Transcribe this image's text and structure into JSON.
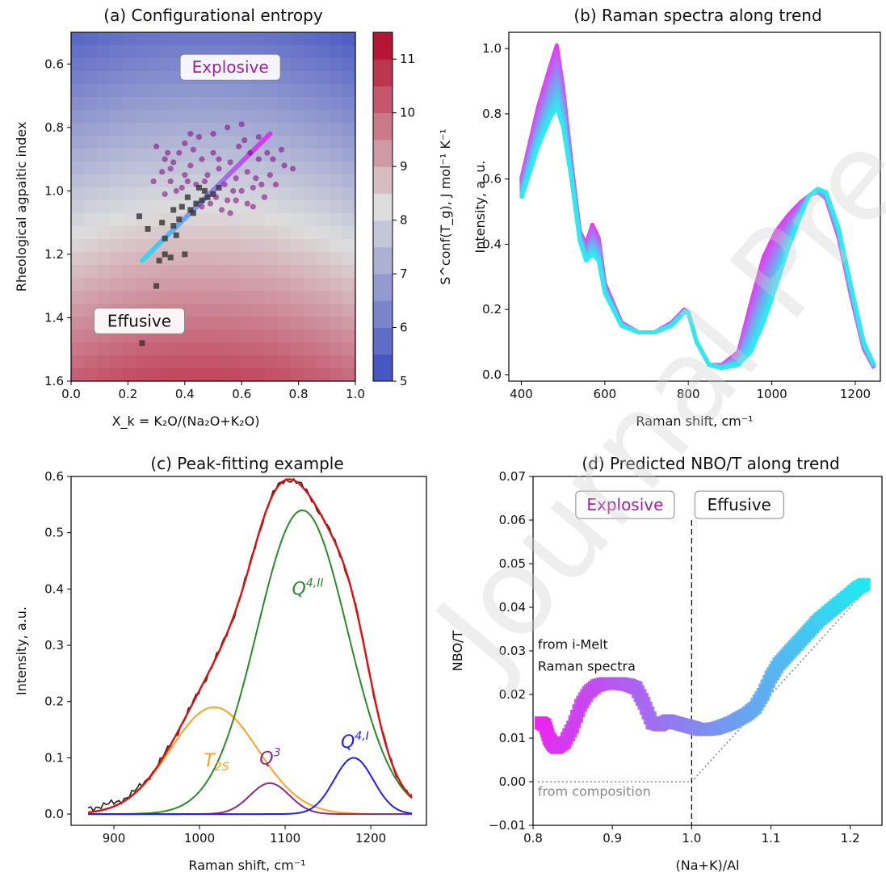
{
  "watermark": "Journal Pre-proofs",
  "chart_data": [
    {
      "id": "a",
      "type": "heatmap",
      "title": "(a) Configurational entropy",
      "xlabel": "X_k = K₂O/(Na₂O+K₂O)",
      "ylabel": "Rheological agpaitic index",
      "xlim": [
        0.0,
        1.0
      ],
      "ylim": [
        1.6,
        0.5
      ],
      "y_inverted": true,
      "xticks": [
        "0.0",
        "0.2",
        "0.4",
        "0.6",
        "0.8",
        "1.0"
      ],
      "yticks": [
        "0.6",
        "0.8",
        "1.0",
        "1.2",
        "1.4",
        "1.6"
      ],
      "colorbar": {
        "label": "S^conf(T_g), J mol⁻¹ K⁻¹",
        "range": [
          5,
          11.5
        ],
        "ticks": [
          "5",
          "6",
          "7",
          "8",
          "9",
          "10",
          "11"
        ],
        "colormap": "coolwarm",
        "low_color": "#3b4cc0",
        "mid_color": "#dddddd",
        "high_color": "#b40426"
      },
      "annotations": [
        {
          "text": "Explosive",
          "x": 0.56,
          "y": 0.61,
          "color": "#a020a0"
        },
        {
          "text": "Effusive",
          "x": 0.24,
          "y": 1.41,
          "color": "#111111"
        }
      ],
      "trend_line": {
        "start": [
          0.25,
          1.22
        ],
        "end": [
          0.7,
          0.82
        ],
        "color_start": "#33ddee",
        "color_end": "#dd33ee"
      },
      "series": [
        {
          "marker": "square",
          "color": "#333333",
          "points": [
            [
              0.25,
              1.48
            ],
            [
              0.3,
              1.3
            ],
            [
              0.24,
              1.08
            ],
            [
              0.27,
              1.12
            ],
            [
              0.31,
              1.22
            ],
            [
              0.33,
              1.2
            ],
            [
              0.35,
              1.21
            ],
            [
              0.37,
              1.14
            ],
            [
              0.4,
              1.2
            ],
            [
              0.33,
              1.15
            ],
            [
              0.36,
              1.11
            ],
            [
              0.38,
              1.09
            ],
            [
              0.42,
              1.06
            ],
            [
              0.44,
              1.04
            ],
            [
              0.46,
              1.03
            ],
            [
              0.48,
              1.02
            ],
            [
              0.5,
              1.01
            ],
            [
              0.47,
              1.0
            ],
            [
              0.43,
              1.07
            ],
            [
              0.39,
              1.05
            ],
            [
              0.45,
              0.99
            ],
            [
              0.52,
              0.99
            ],
            [
              0.41,
              1.02
            ],
            [
              0.36,
              1.06
            ],
            [
              0.32,
              1.1
            ]
          ]
        },
        {
          "marker": "circle",
          "color": "#800080",
          "points": [
            [
              0.3,
              0.86
            ],
            [
              0.33,
              0.9
            ],
            [
              0.35,
              0.93
            ],
            [
              0.38,
              0.88
            ],
            [
              0.4,
              0.95
            ],
            [
              0.42,
              0.92
            ],
            [
              0.44,
              0.98
            ],
            [
              0.46,
              0.9
            ],
            [
              0.48,
              0.95
            ],
            [
              0.5,
              0.88
            ],
            [
              0.52,
              0.93
            ],
            [
              0.54,
              0.98
            ],
            [
              0.56,
              0.91
            ],
            [
              0.58,
              0.96
            ],
            [
              0.6,
              1.0
            ],
            [
              0.62,
              0.94
            ],
            [
              0.64,
              0.99
            ],
            [
              0.66,
              0.9
            ],
            [
              0.68,
              1.02
            ],
            [
              0.7,
              0.95
            ],
            [
              0.72,
              0.98
            ],
            [
              0.75,
              0.92
            ],
            [
              0.35,
              0.97
            ],
            [
              0.37,
              1.0
            ],
            [
              0.4,
              0.85
            ],
            [
              0.43,
              0.87
            ],
            [
              0.45,
              0.83
            ],
            [
              0.47,
              0.97
            ],
            [
              0.49,
              1.04
            ],
            [
              0.51,
              1.02
            ],
            [
              0.53,
              1.06
            ],
            [
              0.55,
              1.03
            ],
            [
              0.57,
              1.0
            ],
            [
              0.59,
              0.86
            ],
            [
              0.61,
              0.84
            ],
            [
              0.63,
              0.88
            ],
            [
              0.65,
              0.96
            ],
            [
              0.67,
              0.98
            ],
            [
              0.69,
              0.88
            ],
            [
              0.71,
              0.9
            ],
            [
              0.29,
              0.97
            ],
            [
              0.32,
              0.94
            ],
            [
              0.34,
              0.88
            ],
            [
              0.36,
              0.91
            ],
            [
              0.39,
              0.99
            ],
            [
              0.41,
              0.97
            ],
            [
              0.52,
              0.9
            ],
            [
              0.58,
              1.03
            ],
            [
              0.62,
              1.04
            ],
            [
              0.74,
              0.87
            ],
            [
              0.78,
              0.93
            ],
            [
              0.42,
              0.82
            ],
            [
              0.5,
              0.82
            ],
            [
              0.55,
              0.8
            ],
            [
              0.6,
              0.79
            ],
            [
              0.66,
              0.83
            ],
            [
              0.33,
              1.01
            ],
            [
              0.46,
              1.05
            ],
            [
              0.56,
              1.07
            ],
            [
              0.64,
              1.05
            ]
          ]
        }
      ]
    },
    {
      "id": "b",
      "type": "line",
      "title": "(b) Raman spectra along trend",
      "xlabel": "Raman shift, cm⁻¹",
      "ylabel": "Intensity, a. u.",
      "xlim": [
        370,
        1260
      ],
      "ylim": [
        -0.02,
        1.05
      ],
      "xticks": [
        "400",
        "600",
        "800",
        "1000",
        "1200"
      ],
      "yticks": [
        "0.0",
        "0.2",
        "0.4",
        "0.6",
        "0.8",
        "1.0"
      ],
      "color_start": "#e040f0",
      "color_end": "#30e8f0",
      "spectrum_first": {
        "x": [
          400,
          440,
          470,
          485,
          500,
          520,
          540,
          555,
          570,
          585,
          600,
          640,
          680,
          720,
          760,
          790,
          800,
          820,
          850,
          880,
          920,
          950,
          980,
          1010,
          1040,
          1070,
          1090,
          1110,
          1130,
          1160,
          1190,
          1220,
          1245
        ],
        "y": [
          0.6,
          0.82,
          0.95,
          1.01,
          0.88,
          0.65,
          0.44,
          0.4,
          0.46,
          0.42,
          0.28,
          0.16,
          0.13,
          0.13,
          0.16,
          0.2,
          0.19,
          0.1,
          0.03,
          0.03,
          0.07,
          0.22,
          0.36,
          0.44,
          0.49,
          0.53,
          0.55,
          0.56,
          0.54,
          0.42,
          0.24,
          0.08,
          0.02
        ]
      },
      "spectrum_last": {
        "x": [
          400,
          440,
          470,
          485,
          500,
          520,
          540,
          555,
          570,
          585,
          600,
          640,
          680,
          720,
          760,
          790,
          800,
          820,
          850,
          880,
          920,
          950,
          980,
          1010,
          1040,
          1070,
          1090,
          1110,
          1130,
          1160,
          1190,
          1220,
          1245
        ],
        "y": [
          0.54,
          0.7,
          0.79,
          0.82,
          0.76,
          0.6,
          0.41,
          0.35,
          0.37,
          0.35,
          0.25,
          0.15,
          0.13,
          0.13,
          0.15,
          0.19,
          0.19,
          0.1,
          0.03,
          0.02,
          0.03,
          0.07,
          0.16,
          0.27,
          0.39,
          0.49,
          0.55,
          0.57,
          0.56,
          0.45,
          0.27,
          0.1,
          0.03
        ]
      },
      "n_spectra": 12
    },
    {
      "id": "c",
      "type": "line",
      "title": "(c) Peak-fitting example",
      "xlabel": "Raman shift, cm⁻¹",
      "ylabel": "Intensity, a.u.",
      "xlim": [
        850,
        1265
      ],
      "ylim": [
        -0.02,
        0.6
      ],
      "xticks": [
        "900",
        "1000",
        "1100",
        "1200"
      ],
      "yticks": [
        "0.0",
        "0.1",
        "0.2",
        "0.3",
        "0.4",
        "0.5",
        "0.6"
      ],
      "x_range": [
        870,
        1250
      ],
      "peaks": [
        {
          "name": "T₂S",
          "center": 1017,
          "amplitude": 0.19,
          "hwhm": 60,
          "color": "#ffa020"
        },
        {
          "name": "Q⁴'ᴵᴵ",
          "center": 1120,
          "amplitude": 0.54,
          "hwhm": 62,
          "color": "#2a8a2a"
        },
        {
          "name": "Q³",
          "center": 1082,
          "amplitude": 0.055,
          "hwhm": 27,
          "color": "#8a2a8a"
        },
        {
          "name": "Q⁴'ᴵ",
          "center": 1180,
          "amplitude": 0.1,
          "hwhm": 27,
          "color": "#2020ee"
        }
      ],
      "labels": [
        {
          "text": "T",
          "sub": "2S",
          "x": 1005,
          "y": 0.085,
          "color": "#ffa020"
        },
        {
          "text": "Q",
          "sup": "4,II",
          "x": 1108,
          "y": 0.39,
          "color": "#2a8a2a"
        },
        {
          "text": "Q",
          "sup": "3",
          "x": 1070,
          "y": 0.088,
          "color": "#8a2a8a"
        },
        {
          "text": "Q",
          "sup": "4,I",
          "x": 1165,
          "y": 0.118,
          "color": "#2020ee"
        }
      ],
      "sum_color": "#dd1111",
      "data_color": "#222222"
    },
    {
      "id": "d",
      "type": "scatter",
      "title": "(d) Predicted NBO/T along trend",
      "xlabel": "(Na+K)/Al",
      "ylabel": "NBO/T",
      "xlim": [
        0.8,
        1.24
      ],
      "ylim": [
        -0.01,
        0.07
      ],
      "xticks": [
        "0.8",
        "0.9",
        "1.0",
        "1.1",
        "1.2"
      ],
      "yticks": [
        "−0.01",
        "0.00",
        "0.01",
        "0.02",
        "0.03",
        "0.04",
        "0.05",
        "0.06",
        "0.07"
      ],
      "annotations": [
        {
          "text": "Explosive",
          "x": 0.916,
          "y": 0.0635,
          "color": "#a020a0"
        },
        {
          "text": "Effusive",
          "x": 1.06,
          "y": 0.0635,
          "color": "#111111"
        },
        {
          "text": "from i-Melt",
          "x": 0.806,
          "y": 0.0305,
          "color": "#111111"
        },
        {
          "text": "Raman spectra",
          "x": 0.806,
          "y": 0.0255,
          "color": "#111111"
        },
        {
          "text": "from composition",
          "x": 0.806,
          "y": -0.0032,
          "color": "#888888"
        }
      ],
      "vline_x": 1.0,
      "composition_line": {
        "x": [
          0.806,
          1.0,
          1.22
        ],
        "y": [
          0.0,
          0.0,
          0.044
        ]
      },
      "predicted": {
        "x": [
          0.81,
          0.815,
          0.82,
          0.825,
          0.83,
          0.84,
          0.85,
          0.86,
          0.87,
          0.88,
          0.89,
          0.9,
          0.91,
          0.92,
          0.93,
          0.94,
          0.95,
          0.96,
          0.97,
          0.98,
          0.99,
          1.0,
          1.01,
          1.02,
          1.03,
          1.04,
          1.05,
          1.06,
          1.07,
          1.08,
          1.09,
          1.1,
          1.11,
          1.12,
          1.13,
          1.14,
          1.15,
          1.16,
          1.17,
          1.18,
          1.19,
          1.2,
          1.21,
          1.22
        ],
        "y": [
          0.0135,
          0.013,
          0.01,
          0.0085,
          0.0078,
          0.009,
          0.0125,
          0.0175,
          0.0205,
          0.022,
          0.0225,
          0.0225,
          0.0225,
          0.0222,
          0.0215,
          0.018,
          0.0135,
          0.013,
          0.014,
          0.0135,
          0.013,
          0.0125,
          0.012,
          0.012,
          0.0122,
          0.0128,
          0.0135,
          0.0145,
          0.0155,
          0.017,
          0.02,
          0.024,
          0.027,
          0.029,
          0.031,
          0.033,
          0.035,
          0.037,
          0.0385,
          0.04,
          0.0415,
          0.043,
          0.0445,
          0.0455
        ]
      },
      "color_start": "#ee22ee",
      "color_end": "#22e8f0"
    }
  ]
}
